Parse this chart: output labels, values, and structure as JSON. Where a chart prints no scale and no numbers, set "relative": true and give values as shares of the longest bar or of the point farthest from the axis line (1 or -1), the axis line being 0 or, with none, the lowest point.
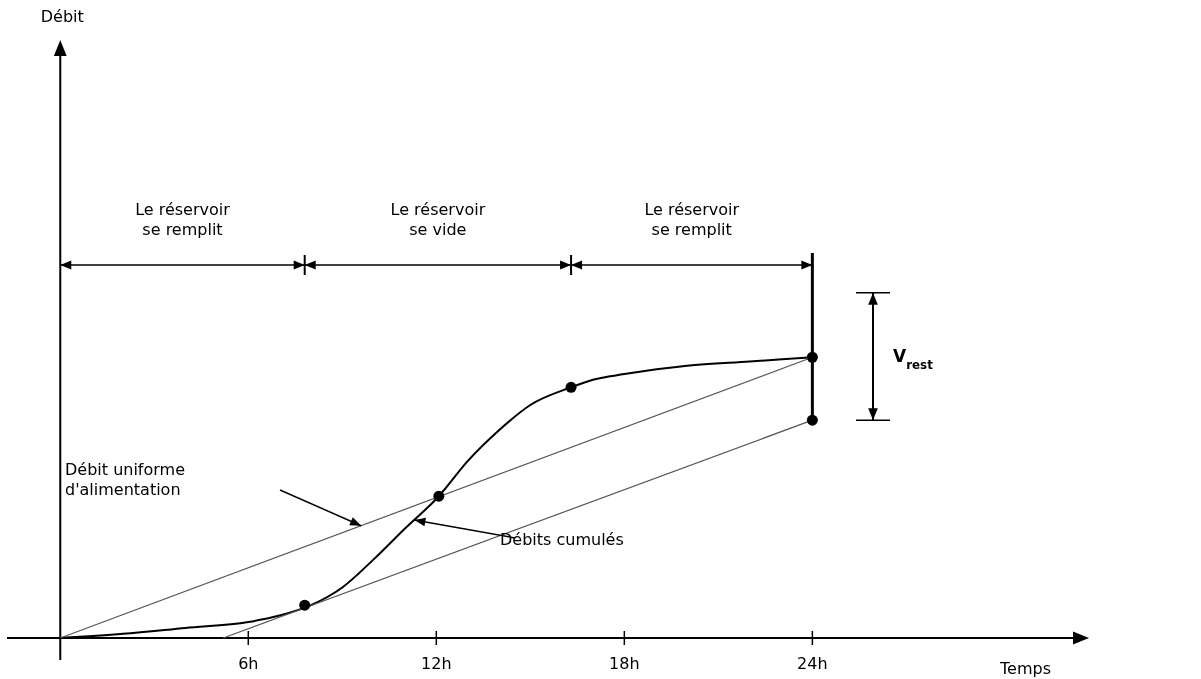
{
  "chart_data": {
    "type": "line",
    "relative": true,
    "xlabel": "Temps",
    "xlim": [
      -1.7,
      32.7
    ],
    "xticks": [
      {
        "value": 6,
        "label": "6h"
      },
      {
        "value": 12,
        "label": "12h"
      },
      {
        "value": 18,
        "label": "18h"
      },
      {
        "value": 24,
        "label": "24h"
      }
    ],
    "grid": false,
    "line_style": "solid",
    "series": [
      {
        "color": "#000000",
        "x": [
          0,
          2,
          4,
          6,
          7,
          8,
          9,
          10,
          11,
          12.08,
          13,
          14,
          15,
          16.3,
          17,
          18,
          20,
          22,
          24
        ],
        "values": [
          0,
          0.015,
          0.036,
          0.057,
          0.08,
          0.117,
          0.18,
          0.28,
          0.39,
          0.505,
          0.63,
          0.74,
          0.83,
          0.893,
          0.92,
          0.94,
          0.97,
          0.985,
          1
        ]
      },
      {
        "color": "#555555",
        "x": [
          0,
          24
        ],
        "values": [
          0,
          1
        ]
      },
      {
        "color": "#555555",
        "x": [
          5.2,
          24
        ],
        "values": [
          0,
          0.776
        ]
      },
      {
        "type": "scatter",
        "color": "#000000",
        "marker": "circle",
        "x": [
          7.8,
          12.08,
          16.3,
          24,
          24
        ],
        "values": [
          0.117,
          0.505,
          0.893,
          1,
          0.776
        ]
      }
    ],
    "ref_lines": [
      {
        "axis": "x",
        "value": 24,
        "color": "#000000"
      }
    ],
    "annotations": [
      "Débit",
      "Le réservoir\nse remplit",
      "Le réservoir\nse vide",
      "Le réservoir\nse remplit",
      "V$_{rest}$",
      "Débit uniforme\nd'alimentation",
      "Débits cumulés"
    ]
  }
}
